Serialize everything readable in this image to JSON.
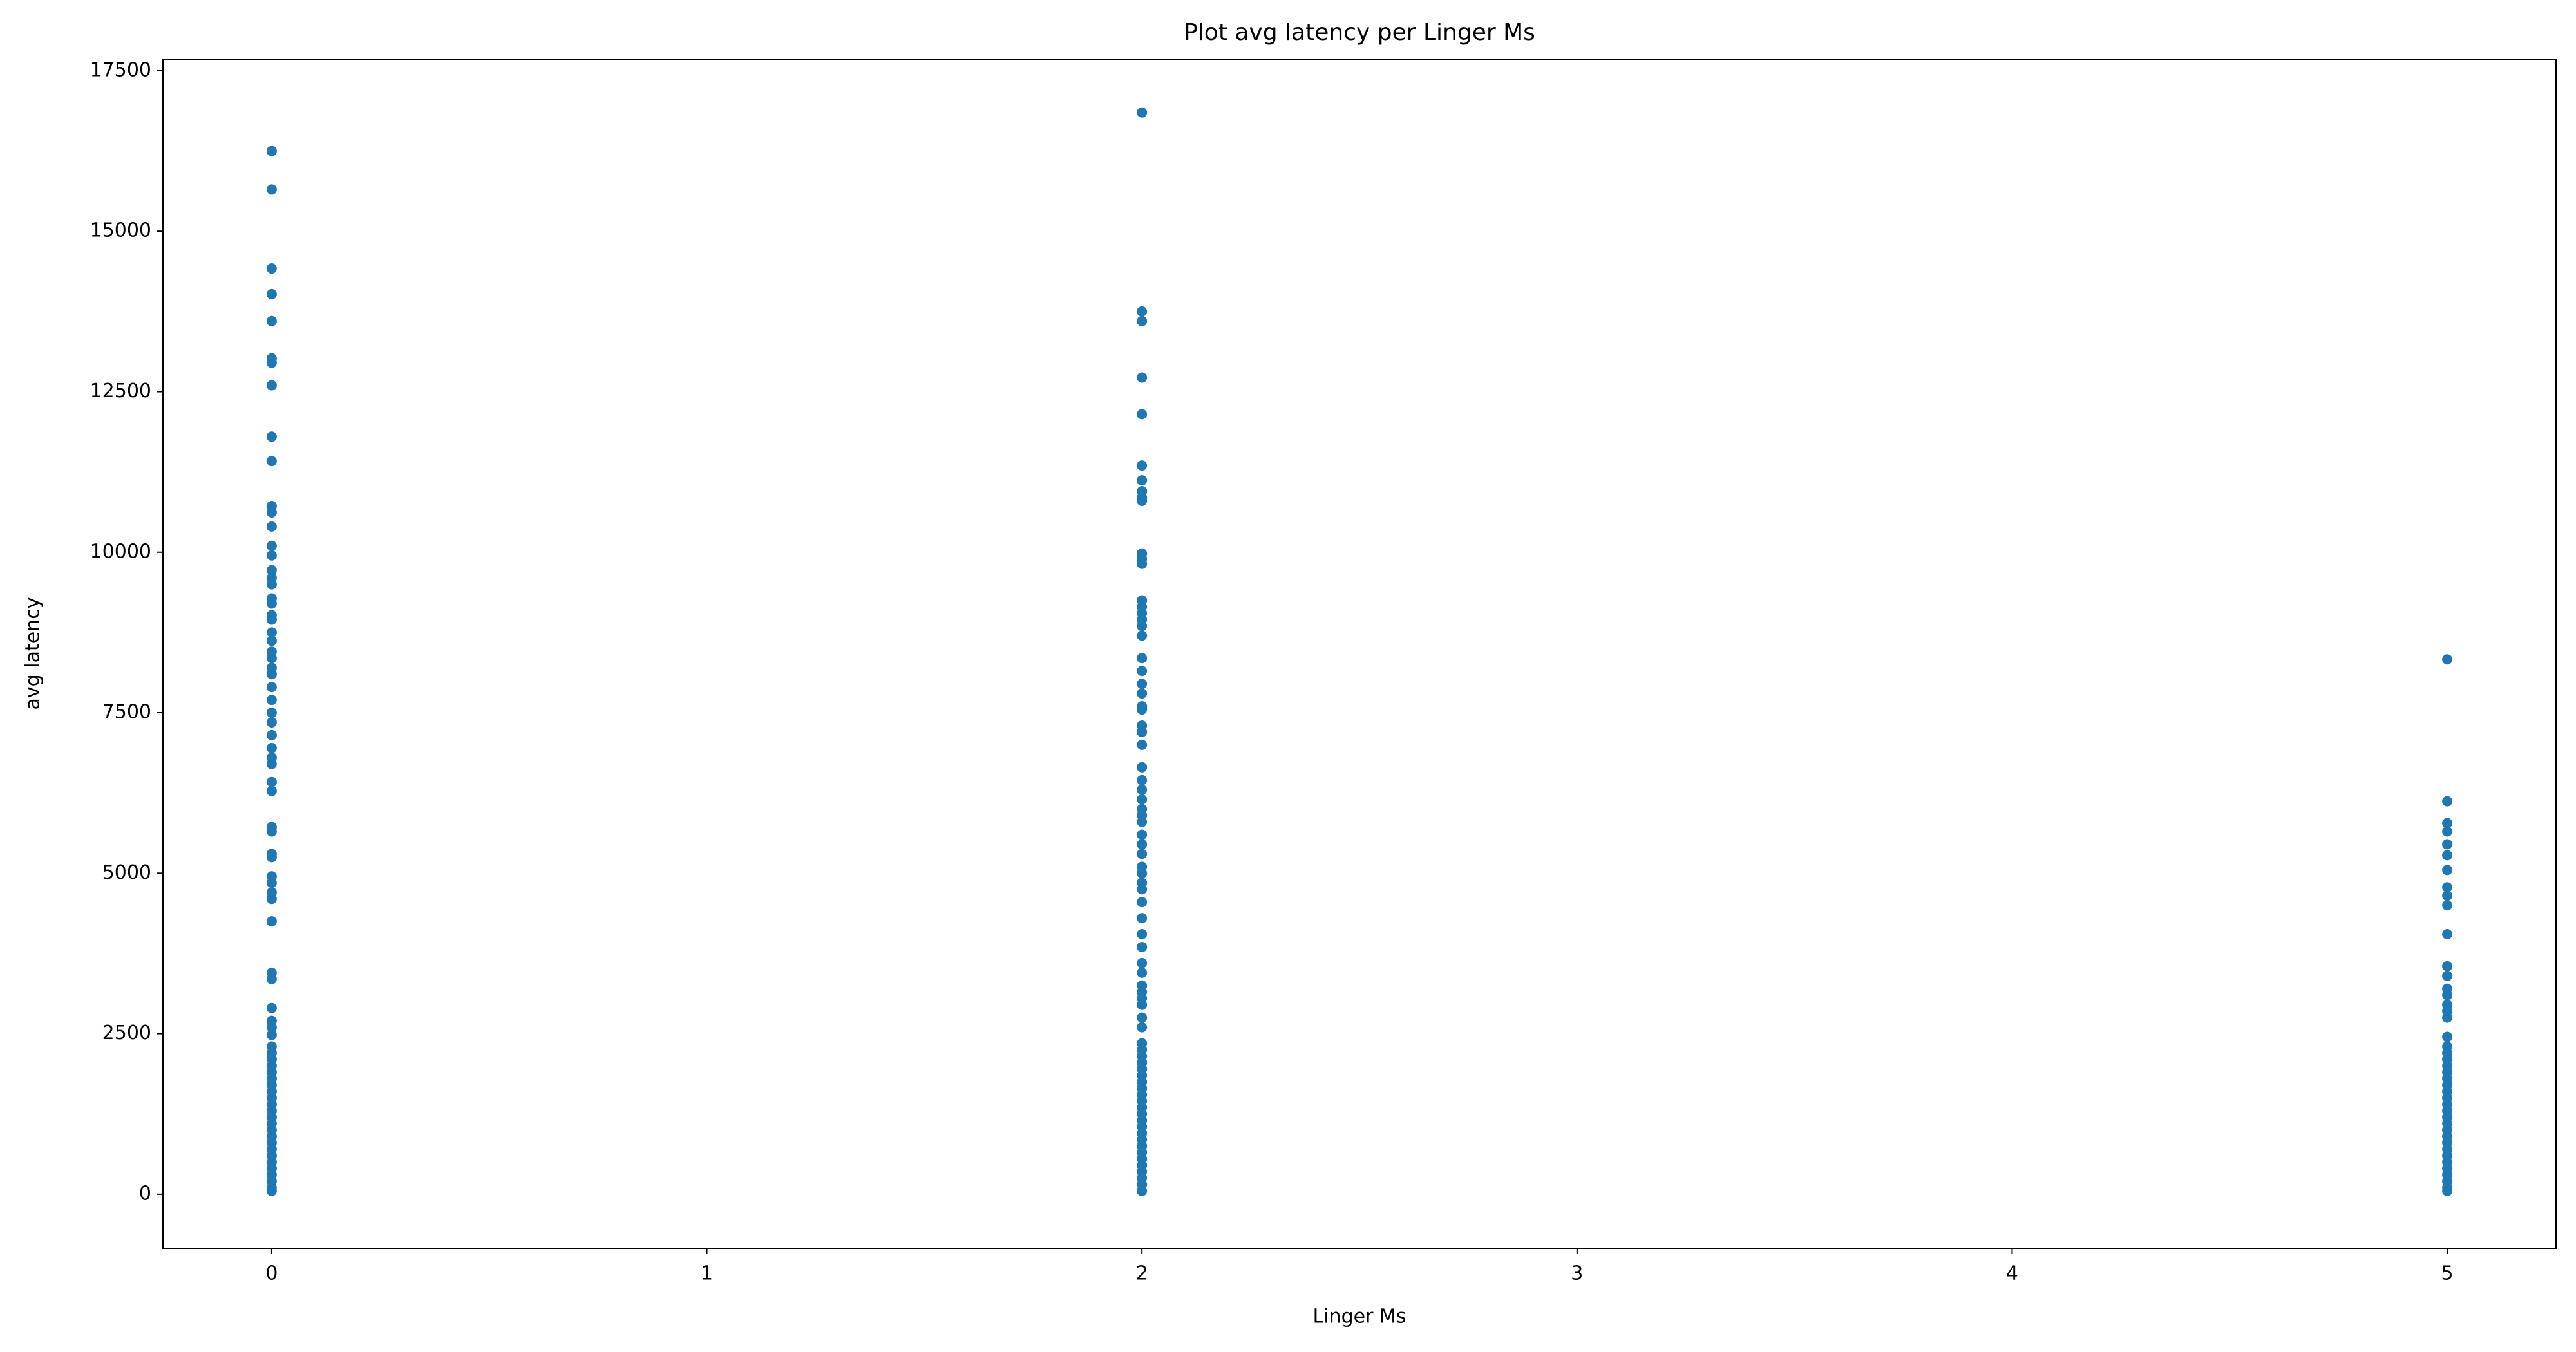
{
  "chart_data": {
    "type": "scatter",
    "title": "Plot avg latency per Linger Ms",
    "xlabel": "Linger Ms",
    "ylabel": "avg latency",
    "color": "#1f77b4",
    "xlim": [
      -0.25,
      5.25
    ],
    "xticks": [
      0,
      1,
      2,
      3,
      4,
      5
    ],
    "ylim": [
      -844,
      17680
    ],
    "yticks": [
      0,
      2500,
      5000,
      7500,
      10000,
      12500,
      15000,
      17500
    ],
    "grid": false,
    "x": [
      0,
      0,
      0,
      0,
      0,
      0,
      0,
      0,
      0,
      0,
      0,
      0,
      0,
      0,
      0,
      0,
      0,
      0,
      0,
      0,
      0,
      0,
      0,
      0,
      0,
      0,
      0,
      0,
      0,
      0,
      0,
      0,
      0,
      0,
      0,
      0,
      0,
      0,
      0,
      0,
      0,
      0,
      0,
      0,
      0,
      0,
      0,
      0,
      0,
      0,
      0,
      0,
      0,
      0,
      0,
      0,
      0,
      0,
      0,
      0,
      0,
      0,
      0,
      0,
      0,
      0,
      0,
      0,
      0,
      0,
      0,
      0,
      0,
      0,
      0,
      0,
      0,
      2,
      2,
      2,
      2,
      2,
      2,
      2,
      2,
      2,
      2,
      2,
      2,
      2,
      2,
      2,
      2,
      2,
      2,
      2,
      2,
      2,
      2,
      2,
      2,
      2,
      2,
      2,
      2,
      2,
      2,
      2,
      2,
      2,
      2,
      2,
      2,
      2,
      2,
      2,
      2,
      2,
      2,
      2,
      2,
      2,
      2,
      2,
      2,
      2,
      2,
      2,
      2,
      2,
      2,
      2,
      2,
      2,
      2,
      2,
      2,
      2,
      2,
      2,
      2,
      2,
      2,
      2,
      2,
      2,
      2,
      2,
      2,
      2,
      2,
      2,
      2,
      2,
      2,
      5,
      5,
      5,
      5,
      5,
      5,
      5,
      5,
      5,
      5,
      5,
      5,
      5,
      5,
      5,
      5,
      5,
      5,
      5,
      5,
      5,
      5,
      5,
      5,
      5,
      5,
      5,
      5,
      5,
      5,
      5,
      5,
      5,
      5,
      5,
      5,
      5,
      5,
      5,
      5,
      5,
      5,
      5
    ],
    "y": [
      16250,
      15650,
      14420,
      14020,
      13600,
      13020,
      12950,
      12600,
      11800,
      11420,
      10720,
      10620,
      10400,
      10100,
      9950,
      9720,
      9600,
      9500,
      9280,
      9200,
      9020,
      8950,
      8750,
      8620,
      8450,
      8350,
      8200,
      8100,
      7900,
      7700,
      7500,
      7350,
      7150,
      6950,
      6800,
      6700,
      6420,
      6280,
      5720,
      5650,
      5300,
      5250,
      4950,
      4850,
      4700,
      4600,
      4250,
      3450,
      3350,
      2900,
      2700,
      2600,
      2480,
      2300,
      2200,
      2100,
      2000,
      1900,
      1800,
      1700,
      1600,
      1500,
      1400,
      1300,
      1200,
      1100,
      1000,
      900,
      800,
      700,
      600,
      500,
      400,
      300,
      200,
      100,
      50,
      16850,
      13750,
      13600,
      12720,
      12150,
      11350,
      11120,
      10950,
      10850,
      10800,
      9980,
      9900,
      9820,
      9250,
      9150,
      9050,
      8950,
      8850,
      8700,
      8350,
      8150,
      7950,
      7800,
      7600,
      7550,
      7300,
      7200,
      7000,
      6650,
      6450,
      6300,
      6150,
      6000,
      5900,
      5800,
      5600,
      5450,
      5300,
      5100,
      5000,
      4850,
      4750,
      4550,
      4300,
      4050,
      3850,
      3600,
      3450,
      3250,
      3150,
      3050,
      2950,
      2750,
      2600,
      2350,
      2250,
      2150,
      2050,
      1950,
      1850,
      1750,
      1650,
      1550,
      1450,
      1350,
      1250,
      1150,
      1050,
      950,
      850,
      750,
      650,
      550,
      450,
      350,
      250,
      150,
      50,
      8330,
      6120,
      5780,
      5650,
      5450,
      5280,
      5050,
      4780,
      4650,
      4500,
      4050,
      3550,
      3400,
      3200,
      3100,
      2950,
      2850,
      2750,
      2450,
      2300,
      2200,
      2100,
      2000,
      1900,
      1800,
      1700,
      1600,
      1500,
      1400,
      1300,
      1200,
      1100,
      1000,
      900,
      800,
      700,
      600,
      500,
      400,
      300,
      200,
      100,
      50
    ]
  }
}
